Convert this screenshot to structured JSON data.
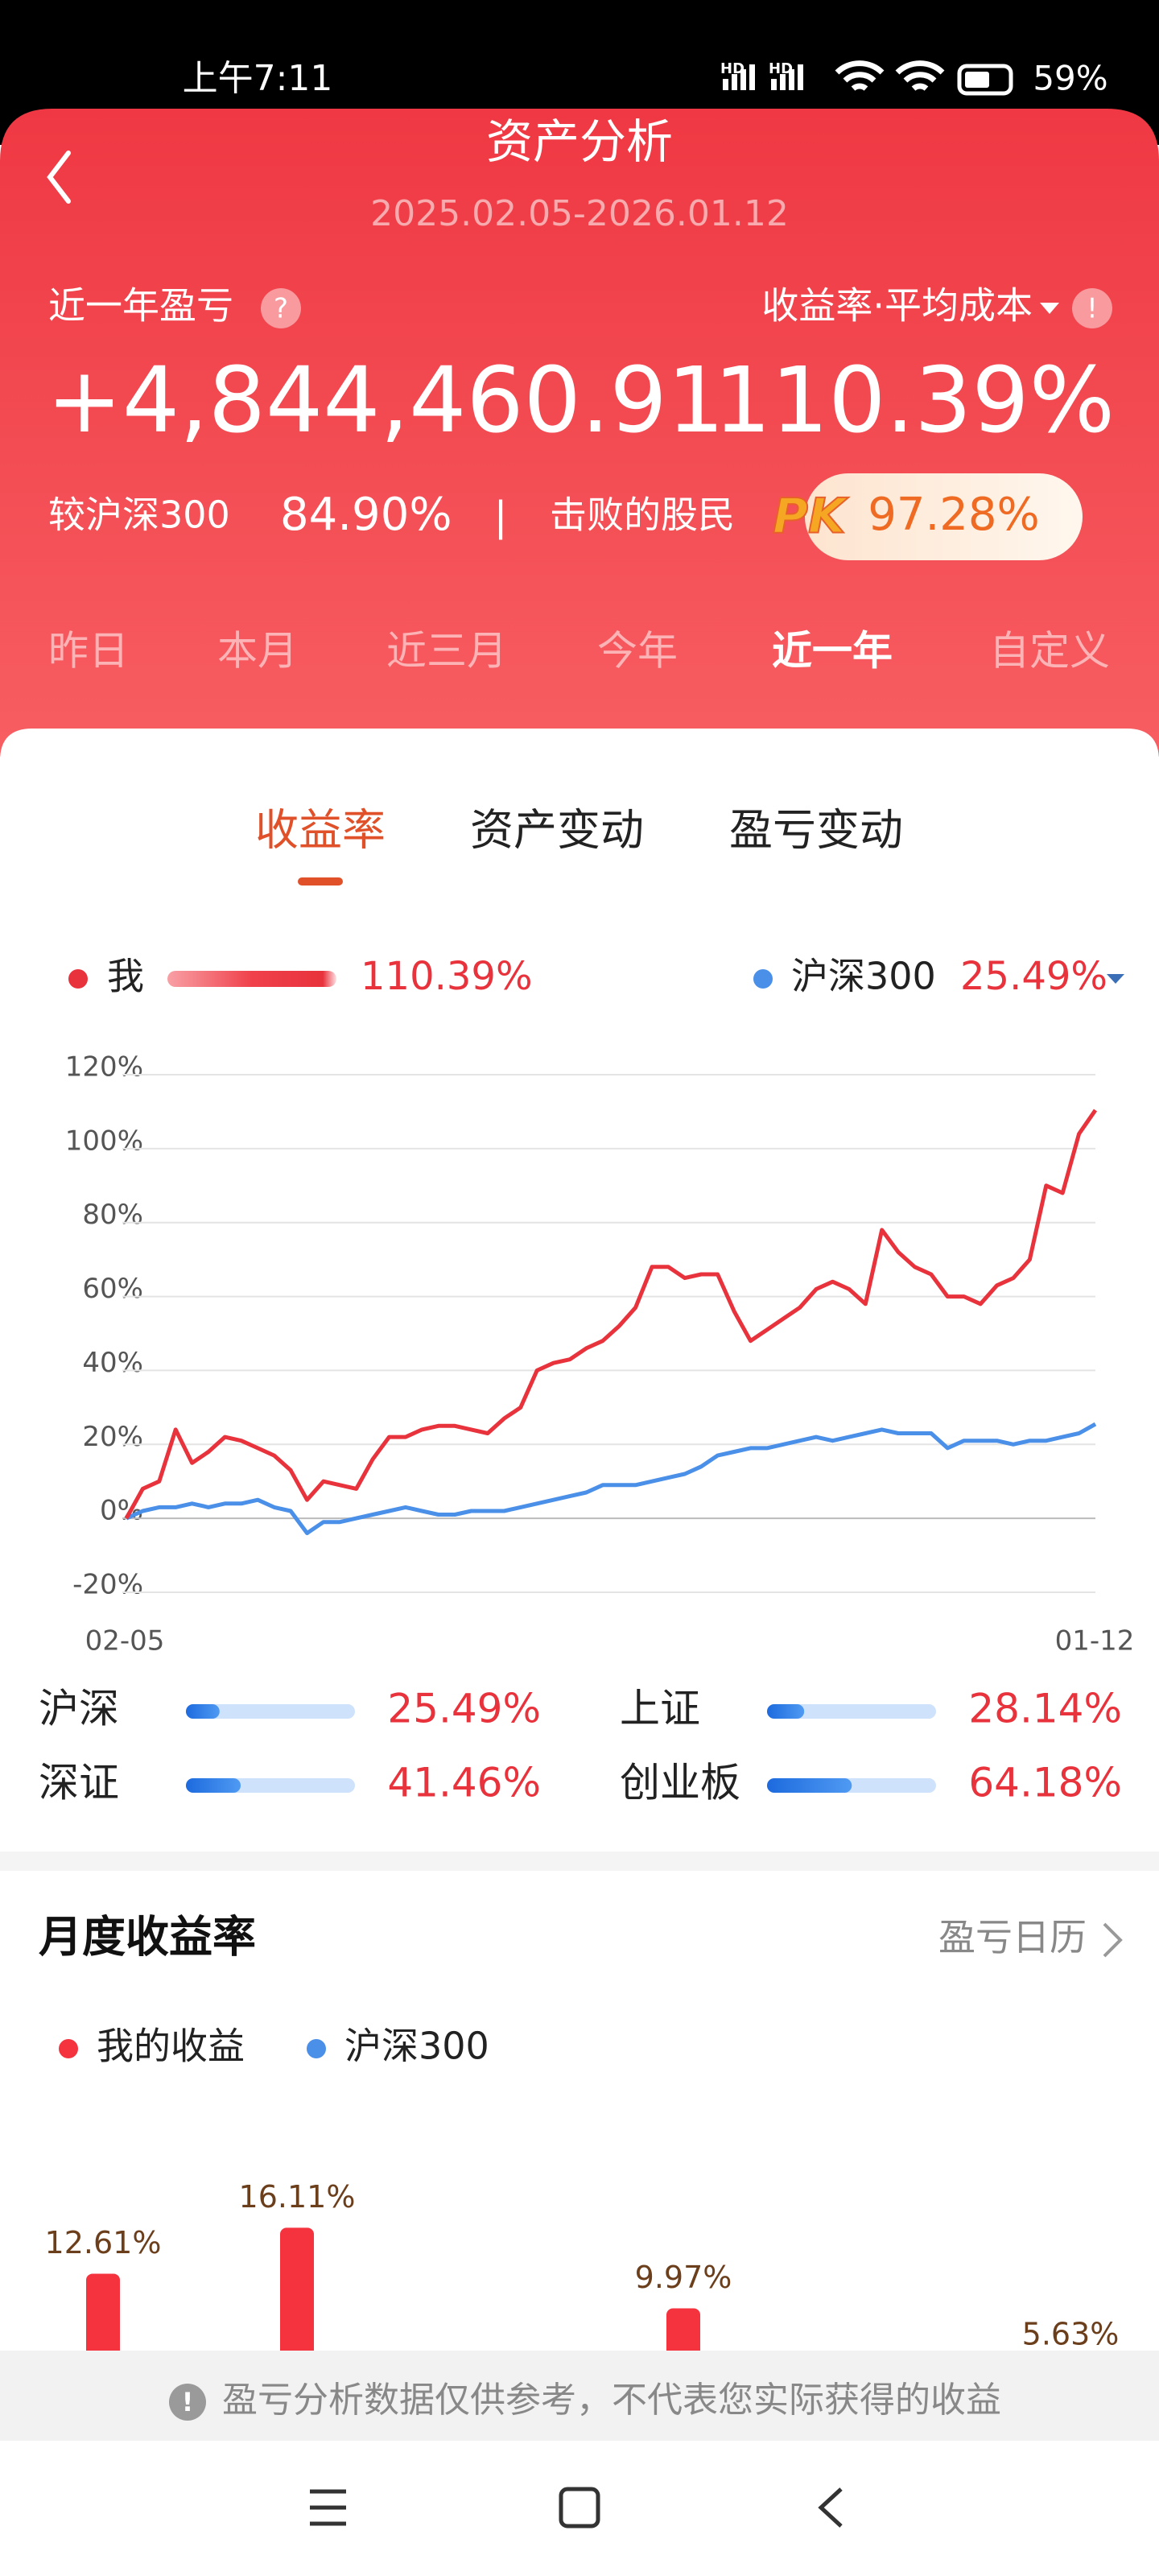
{
  "status_bar": {
    "time": "上午7:11",
    "network_labels": [
      "HD",
      "HD"
    ],
    "battery": "59%"
  },
  "header": {
    "title": "资产分析",
    "date_range": "2025.02.05-2026.01.12"
  },
  "summary": {
    "label": "近一年盈亏",
    "help": "?",
    "metric_selector": "收益率·平均成本",
    "warning": "!",
    "profit": "+4,844,460.91",
    "return_rate": "110.39%",
    "benchmark_label": "较沪深300",
    "benchmark_value": "84.90%",
    "separator": "|",
    "beat_label": "击败的股民",
    "pk": "PK",
    "beat_value": "97.28%"
  },
  "period_tabs": [
    "昨日",
    "本月",
    "近三月",
    "今年",
    "近一年",
    "自定义"
  ],
  "period_active": 4,
  "view_tabs": [
    "收益率",
    "资产变动",
    "盈亏变动"
  ],
  "view_active": 0,
  "chart_data": {
    "type": "line",
    "legend_values": [
      "110.39%",
      "25.49%"
    ],
    "series": [
      {
        "name": "我",
        "color": "#e8323c",
        "values": [
          0,
          8,
          10,
          24,
          15,
          18,
          22,
          21,
          19,
          17,
          13,
          5,
          10,
          9,
          8,
          16,
          22,
          22,
          24,
          25,
          25,
          24,
          23,
          27,
          30,
          40,
          42,
          43,
          46,
          48,
          52,
          57,
          68,
          68,
          65,
          66,
          66,
          56,
          48,
          51,
          54,
          57,
          62,
          64,
          62,
          58,
          78,
          72,
          68,
          66,
          60,
          60,
          58,
          63,
          65,
          70,
          90,
          88,
          104,
          110.39
        ]
      },
      {
        "name": "沪深300",
        "color": "#4a8fe8",
        "values": [
          0,
          2,
          3,
          3,
          4,
          3,
          4,
          4,
          5,
          3,
          2,
          -4,
          -1,
          -1,
          0,
          1,
          2,
          3,
          2,
          1,
          1,
          2,
          2,
          2,
          3,
          4,
          5,
          6,
          7,
          9,
          9,
          9,
          10,
          11,
          12,
          14,
          17,
          18,
          19,
          19,
          20,
          21,
          22,
          21,
          22,
          23,
          24,
          23,
          23,
          23,
          19,
          21,
          21,
          21,
          20,
          21,
          21,
          22,
          23,
          25.49
        ]
      }
    ],
    "x_labels": [
      "02-05",
      "01-12"
    ],
    "ylim": [
      -20,
      120
    ],
    "yticks": [
      {
        "value": -20,
        "label": "-20%"
      },
      {
        "value": 0,
        "label": "0%"
      },
      {
        "value": 20,
        "label": "20%"
      },
      {
        "value": 40,
        "label": "40%"
      },
      {
        "value": 60,
        "label": "60%"
      },
      {
        "value": 80,
        "label": "80%"
      },
      {
        "value": 100,
        "label": "100%"
      },
      {
        "value": 120,
        "label": "120%"
      }
    ],
    "grid": true
  },
  "indices": [
    {
      "name": "沪深",
      "value": 25.49,
      "label": "25.49%"
    },
    {
      "name": "上证",
      "value": 28.14,
      "label": "28.14%"
    },
    {
      "name": "深证",
      "value": 41.46,
      "label": "41.46%"
    },
    {
      "name": "创业板",
      "value": 64.18,
      "label": "64.18%"
    }
  ],
  "monthly": {
    "title": "月度收益率",
    "calendar_link": "盈亏日历",
    "chart": {
      "type": "bar",
      "series": [
        {
          "name": "我的收益",
          "color": "#f5333f"
        },
        {
          "name": "沪深300",
          "color": "#4a8fe8"
        }
      ],
      "values": [
        12.61,
        16.11,
        9.97,
        5.63
      ],
      "value_labels": [
        "12.61%",
        "16.11%",
        "9.97%",
        "5.63%"
      ],
      "bar_series": [
        0,
        0,
        0,
        1
      ]
    }
  },
  "notice": {
    "icon": "!",
    "text": "盈亏分析数据仅供参考，不代表您实际获得的收益"
  }
}
